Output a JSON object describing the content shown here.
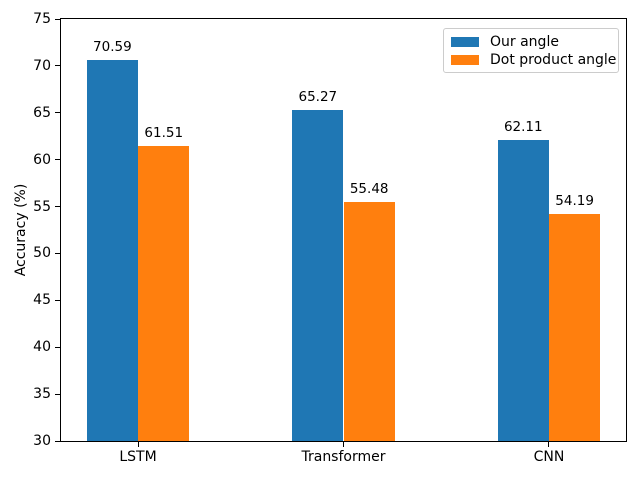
{
  "chart_data": {
    "type": "bar",
    "title": "",
    "xlabel": "",
    "ylabel": "Accuracy (%)",
    "categories": [
      "LSTM",
      "Transformer",
      "CNN"
    ],
    "series": [
      {
        "name": "Our angle",
        "color": "#1f77b4",
        "values": [
          70.59,
          65.27,
          62.11
        ]
      },
      {
        "name": "Dot product angle",
        "color": "#ff7f0e",
        "values": [
          61.51,
          55.48,
          54.19
        ]
      }
    ],
    "value_label_format": "2dp",
    "ylim": [
      30,
      75
    ],
    "yticks": [
      30,
      35,
      40,
      45,
      50,
      55,
      60,
      65,
      70,
      75
    ],
    "grid": false,
    "legend_position": "upper right",
    "axis_color": "#000000",
    "background_color": "#ffffff"
  }
}
